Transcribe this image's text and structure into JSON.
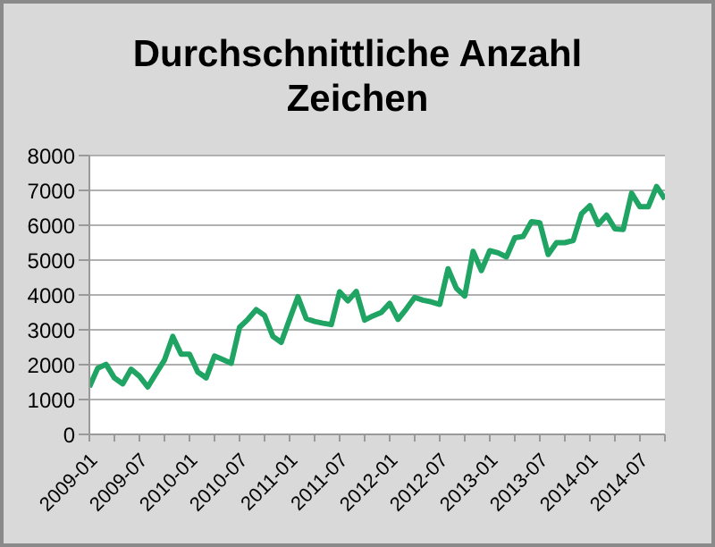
{
  "chart_data": {
    "type": "line",
    "title": "Durchschnittliche Anzahl Zeichen",
    "x": [
      "2009-01",
      "2009-02",
      "2009-03",
      "2009-04",
      "2009-05",
      "2009-06",
      "2009-07",
      "2009-08",
      "2009-09",
      "2009-10",
      "2009-11",
      "2009-12",
      "2010-01",
      "2010-02",
      "2010-03",
      "2010-04",
      "2010-05",
      "2010-06",
      "2010-07",
      "2010-08",
      "2010-09",
      "2010-10",
      "2010-11",
      "2010-12",
      "2011-01",
      "2011-02",
      "2011-03",
      "2011-04",
      "2011-05",
      "2011-06",
      "2011-07",
      "2011-08",
      "2011-09",
      "2011-10",
      "2011-11",
      "2011-12",
      "2012-01",
      "2012-02",
      "2012-03",
      "2012-04",
      "2012-05",
      "2012-06",
      "2012-07",
      "2012-08",
      "2012-09",
      "2012-10",
      "2012-11",
      "2012-12",
      "2013-01",
      "2013-02",
      "2013-03",
      "2013-04",
      "2013-05",
      "2013-06",
      "2013-07",
      "2013-08",
      "2013-09",
      "2013-10",
      "2013-11",
      "2013-12",
      "2014-01",
      "2014-02",
      "2014-03",
      "2014-04",
      "2014-05",
      "2014-06",
      "2014-07",
      "2014-08",
      "2014-09",
      "2014-10"
    ],
    "series": [
      {
        "color": "#1fa463",
        "values": [
          1360,
          1900,
          2010,
          1620,
          1450,
          1870,
          1670,
          1360,
          1750,
          2130,
          2810,
          2300,
          2300,
          1790,
          1620,
          2250,
          2150,
          2040,
          3070,
          3300,
          3580,
          3410,
          2810,
          2640,
          3300,
          3950,
          3320,
          3240,
          3190,
          3150,
          4090,
          3830,
          4100,
          3280,
          3400,
          3500,
          3760,
          3300,
          3600,
          3930,
          3850,
          3800,
          3730,
          4750,
          4190,
          3970,
          5250,
          4700,
          5270,
          5210,
          5090,
          5640,
          5680,
          6100,
          6070,
          5160,
          5500,
          5500,
          5560,
          6330,
          6560,
          6020,
          6290,
          5900,
          5880,
          6920,
          6530,
          6530,
          7110,
          6750
        ]
      }
    ],
    "xlim": [
      "2009-01",
      "2014-10"
    ],
    "xticks": [
      "2009-01",
      {
        "value": "2009-04",
        "label": null
      },
      "2009-07",
      {
        "value": "2009-10",
        "label": null
      },
      "2010-01",
      {
        "value": "2010-04",
        "label": null
      },
      "2010-07",
      {
        "value": "2010-10",
        "label": null
      },
      "2011-01",
      {
        "value": "2011-04",
        "label": null
      },
      "2011-07",
      {
        "value": "2011-10",
        "label": null
      },
      "2012-01",
      {
        "value": "2012-04",
        "label": null
      },
      "2012-07",
      {
        "value": "2012-10",
        "label": null
      },
      "2013-01",
      {
        "value": "2013-04",
        "label": null
      },
      "2013-07",
      {
        "value": "2013-10",
        "label": null
      },
      "2014-01",
      {
        "value": "2014-04",
        "label": null
      },
      "2014-07",
      {
        "value": "2014-10",
        "label": null
      }
    ],
    "ylim": [
      0,
      8000
    ],
    "yticks": [
      0,
      1000,
      2000,
      3000,
      4000,
      5000,
      6000,
      7000,
      8000
    ],
    "grid": "y",
    "legend": false,
    "marker": "none",
    "line_style": "solid"
  }
}
